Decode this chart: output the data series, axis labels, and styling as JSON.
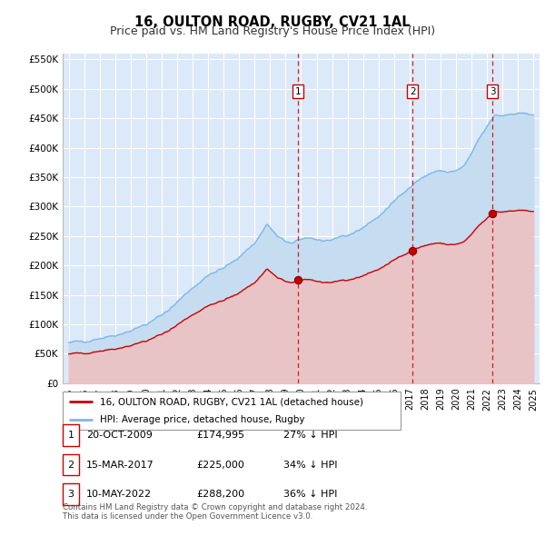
{
  "title": "16, OULTON ROAD, RUGBY, CV21 1AL",
  "subtitle": "Price paid vs. HM Land Registry's House Price Index (HPI)",
  "title_fontsize": 10.5,
  "subtitle_fontsize": 9,
  "ylim": [
    0,
    560000
  ],
  "yticks": [
    0,
    50000,
    100000,
    150000,
    200000,
    250000,
    300000,
    350000,
    400000,
    450000,
    500000,
    550000
  ],
  "ytick_labels": [
    "£0",
    "£50K",
    "£100K",
    "£150K",
    "£200K",
    "£250K",
    "£300K",
    "£350K",
    "£400K",
    "£450K",
    "£500K",
    "£550K"
  ],
  "xlim_start": 1994.6,
  "xlim_end": 2025.4,
  "xticks": [
    1995,
    1996,
    1997,
    1998,
    1999,
    2000,
    2001,
    2002,
    2003,
    2004,
    2005,
    2006,
    2007,
    2008,
    2009,
    2010,
    2011,
    2012,
    2013,
    2014,
    2015,
    2016,
    2017,
    2018,
    2019,
    2020,
    2021,
    2022,
    2023,
    2024,
    2025
  ],
  "background_color": "#ffffff",
  "plot_bg_color": "#dce9f8",
  "grid_color": "#ffffff",
  "hpi_line_color": "#7ab8e8",
  "hpi_fill_color": "#c6dcf0",
  "price_line_color": "#cc0000",
  "price_fill_color": "#f0c0c0",
  "marker_color": "#cc0000",
  "vline_color": "#cc0000",
  "sale_points": [
    {
      "year": 2009.8,
      "price": 174995,
      "label": "1"
    },
    {
      "year": 2017.2,
      "price": 225000,
      "label": "2"
    },
    {
      "year": 2022.37,
      "price": 288200,
      "label": "3"
    }
  ],
  "legend_label_red": "16, OULTON ROAD, RUGBY, CV21 1AL (detached house)",
  "legend_label_blue": "HPI: Average price, detached house, Rugby",
  "table_rows": [
    [
      "1",
      "20-OCT-2009",
      "£174,995",
      "27% ↓ HPI"
    ],
    [
      "2",
      "15-MAR-2017",
      "£225,000",
      "34% ↓ HPI"
    ],
    [
      "3",
      "10-MAY-2022",
      "£288,200",
      "36% ↓ HPI"
    ]
  ],
  "footer_text": "Contains HM Land Registry data © Crown copyright and database right 2024.\nThis data is licensed under the Open Government Licence v3.0.",
  "hpi_milestones": {
    "1995.0": 68000,
    "1996.0": 72000,
    "1997.0": 77000,
    "1998.0": 82000,
    "1999.0": 90000,
    "2000.0": 100000,
    "2001.0": 115000,
    "2002.0": 138000,
    "2003.0": 163000,
    "2004.0": 183000,
    "2005.0": 195000,
    "2006.0": 215000,
    "2007.0": 238000,
    "2007.8": 270000,
    "2008.5": 248000,
    "2009.0": 240000,
    "2009.5": 238000,
    "2010.0": 243000,
    "2010.5": 248000,
    "2011.0": 245000,
    "2011.5": 242000,
    "2012.0": 243000,
    "2012.5": 245000,
    "2013.0": 250000,
    "2014.0": 265000,
    "2015.0": 283000,
    "2016.0": 308000,
    "2017.0": 335000,
    "2018.0": 352000,
    "2019.0": 362000,
    "2019.5": 358000,
    "2020.0": 360000,
    "2020.5": 368000,
    "2021.0": 388000,
    "2021.5": 415000,
    "2022.0": 435000,
    "2022.5": 455000,
    "2023.0": 455000,
    "2023.5": 458000,
    "2024.0": 460000,
    "2024.5": 458000,
    "2025.0": 456000
  }
}
